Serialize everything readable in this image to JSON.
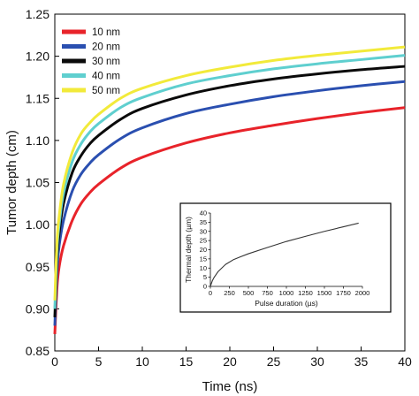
{
  "chart_data": [
    {
      "type": "line",
      "xlabel": "Time (ns)",
      "ylabel": "Tumor depth (cm)",
      "xlim": [
        0,
        40
      ],
      "ylim": [
        0.85,
        1.25
      ],
      "xticks": [
        "0",
        "5",
        "10",
        "15",
        "20",
        "25",
        "30",
        "35",
        "40"
      ],
      "yticks": [
        "0.85",
        "0.90",
        "0.95",
        "1.00",
        "1.05",
        "1.10",
        "1.15",
        "1.20",
        "1.25"
      ],
      "grid": false,
      "legend_position": "top-left",
      "x": [
        0,
        0.25,
        0.5,
        1,
        2,
        3,
        4,
        5,
        7.5,
        10,
        15,
        20,
        25,
        30,
        35,
        40
      ],
      "series": [
        {
          "name": "10 nm",
          "color": "#e8232a",
          "values": [
            0.87,
            0.925,
            0.95,
            0.975,
            1.005,
            1.025,
            1.038,
            1.048,
            1.067,
            1.08,
            1.097,
            1.109,
            1.118,
            1.126,
            1.133,
            1.139
          ]
        },
        {
          "name": "20 nm",
          "color": "#2a4fb0",
          "values": [
            0.88,
            0.945,
            0.975,
            1.005,
            1.04,
            1.06,
            1.073,
            1.083,
            1.102,
            1.115,
            1.132,
            1.143,
            1.152,
            1.159,
            1.165,
            1.17
          ]
        },
        {
          "name": "30 nm",
          "color": "#0a0a0a",
          "values": [
            0.89,
            0.96,
            0.99,
            1.025,
            1.062,
            1.082,
            1.096,
            1.106,
            1.125,
            1.138,
            1.154,
            1.165,
            1.173,
            1.179,
            1.184,
            1.188
          ]
        },
        {
          "name": "40 nm",
          "color": "#5fcfcf",
          "values": [
            0.9,
            0.97,
            1.0,
            1.037,
            1.075,
            1.096,
            1.11,
            1.12,
            1.139,
            1.151,
            1.167,
            1.177,
            1.185,
            1.191,
            1.196,
            1.201
          ]
        },
        {
          "name": "50 nm",
          "color": "#f2ea3a",
          "values": [
            0.91,
            0.98,
            1.01,
            1.048,
            1.086,
            1.108,
            1.121,
            1.131,
            1.15,
            1.162,
            1.177,
            1.187,
            1.195,
            1.201,
            1.206,
            1.211
          ]
        }
      ]
    },
    {
      "type": "line",
      "xlabel": "Pulse duration (µs)",
      "ylabel": "Thermal depth (µm)",
      "xlim": [
        0,
        2000
      ],
      "ylim": [
        0,
        40
      ],
      "xticks": [
        "0",
        "250",
        "500",
        "750",
        "1000",
        "1250",
        "1500",
        "1750",
        "2000"
      ],
      "yticks": [
        "0",
        "5",
        "10",
        "15",
        "20",
        "25",
        "30",
        "35",
        "40"
      ],
      "x": [
        0,
        25,
        50,
        100,
        200,
        300,
        400,
        500,
        750,
        1000,
        1250,
        1500,
        1750,
        1950
      ],
      "series": [
        {
          "color": "#333333",
          "values": [
            0,
            3,
            5,
            8,
            12,
            14.5,
            16.2,
            17.8,
            21.2,
            24.5,
            27.3,
            30,
            32.5,
            34.5
          ]
        }
      ]
    }
  ]
}
